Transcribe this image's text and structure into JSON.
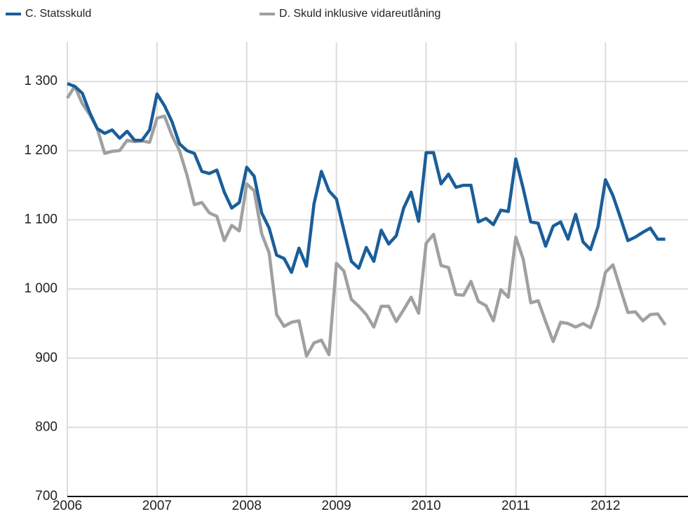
{
  "chart_data": {
    "type": "line",
    "x": [
      2006,
      2006.083,
      2006.167,
      2006.25,
      2006.333,
      2006.417,
      2006.5,
      2006.583,
      2006.667,
      2006.75,
      2006.833,
      2006.917,
      2007,
      2007.083,
      2007.167,
      2007.25,
      2007.333,
      2007.417,
      2007.5,
      2007.583,
      2007.667,
      2007.75,
      2007.833,
      2007.917,
      2008,
      2008.083,
      2008.167,
      2008.25,
      2008.333,
      2008.417,
      2008.5,
      2008.583,
      2008.667,
      2008.75,
      2008.833,
      2008.917,
      2009,
      2009.083,
      2009.167,
      2009.25,
      2009.333,
      2009.417,
      2009.5,
      2009.583,
      2009.667,
      2009.75,
      2009.833,
      2009.917,
      2010,
      2010.083,
      2010.167,
      2010.25,
      2010.333,
      2010.417,
      2010.5,
      2010.583,
      2010.667,
      2010.75,
      2010.833,
      2010.917,
      2011,
      2011.083,
      2011.167,
      2011.25,
      2011.333,
      2011.417,
      2011.5,
      2011.583,
      2011.667,
      2011.75,
      2011.833,
      2011.917,
      2012,
      2012.083,
      2012.167,
      2012.25,
      2012.333,
      2012.417,
      2012.5,
      2012.583,
      2012.667
    ],
    "series": [
      {
        "name": "C. Statsskuld",
        "color": "#1a5e9a",
        "values": [
          1297,
          1293,
          1283,
          1255,
          1232,
          1225,
          1230,
          1218,
          1228,
          1215,
          1215,
          1230,
          1282,
          1265,
          1242,
          1210,
          1200,
          1196,
          1170,
          1167,
          1172,
          1140,
          1117,
          1125,
          1176,
          1163,
          1110,
          1088,
          1049,
          1044,
          1024,
          1059,
          1033,
          1123,
          1170,
          1142,
          1130,
          1085,
          1040,
          1030,
          1060,
          1040,
          1085,
          1065,
          1077,
          1117,
          1140,
          1098,
          1197,
          1197,
          1152,
          1166,
          1147,
          1150,
          1150,
          1097,
          1102,
          1093,
          1114,
          1112,
          1188,
          1145,
          1097,
          1095,
          1062,
          1091,
          1097,
          1072,
          1108,
          1068,
          1057,
          1090,
          1158,
          1135,
          1103,
          1070,
          1075,
          1082,
          1088,
          1072,
          1072
        ]
      },
      {
        "name": "D. Skuld inklusive vidareutlåning",
        "color": "#a0a0a0",
        "values": [
          1276,
          1293,
          1268,
          1252,
          1232,
          1196,
          1199,
          1200,
          1215,
          1213,
          1214,
          1212,
          1247,
          1250,
          1222,
          1200,
          1165,
          1122,
          1125,
          1110,
          1105,
          1070,
          1092,
          1084,
          1152,
          1142,
          1080,
          1052,
          963,
          946,
          952,
          954,
          903,
          922,
          926,
          905,
          1037,
          1026,
          985,
          975,
          963,
          945,
          975,
          975,
          953,
          970,
          988,
          965,
          1066,
          1079,
          1034,
          1031,
          992,
          991,
          1011,
          982,
          976,
          954,
          999,
          988,
          1075,
          1043,
          980,
          983,
          953,
          924,
          952,
          950,
          945,
          950,
          944,
          975,
          1024,
          1035,
          1000,
          966,
          967,
          954,
          963,
          964,
          948
        ]
      }
    ],
    "xlim": [
      2006,
      2012.92
    ],
    "xticks": [
      2006,
      2007,
      2008,
      2009,
      2010,
      2011,
      2012
    ],
    "ylim": [
      700,
      1357
    ],
    "yticks": [
      700,
      800,
      900,
      {
        "value": 1000,
        "label": "1 000"
      },
      {
        "value": 1100,
        "label": "1 100"
      },
      {
        "value": 1200,
        "label": "1 200"
      },
      {
        "value": 1300,
        "label": "1 300"
      }
    ],
    "grid": true
  }
}
